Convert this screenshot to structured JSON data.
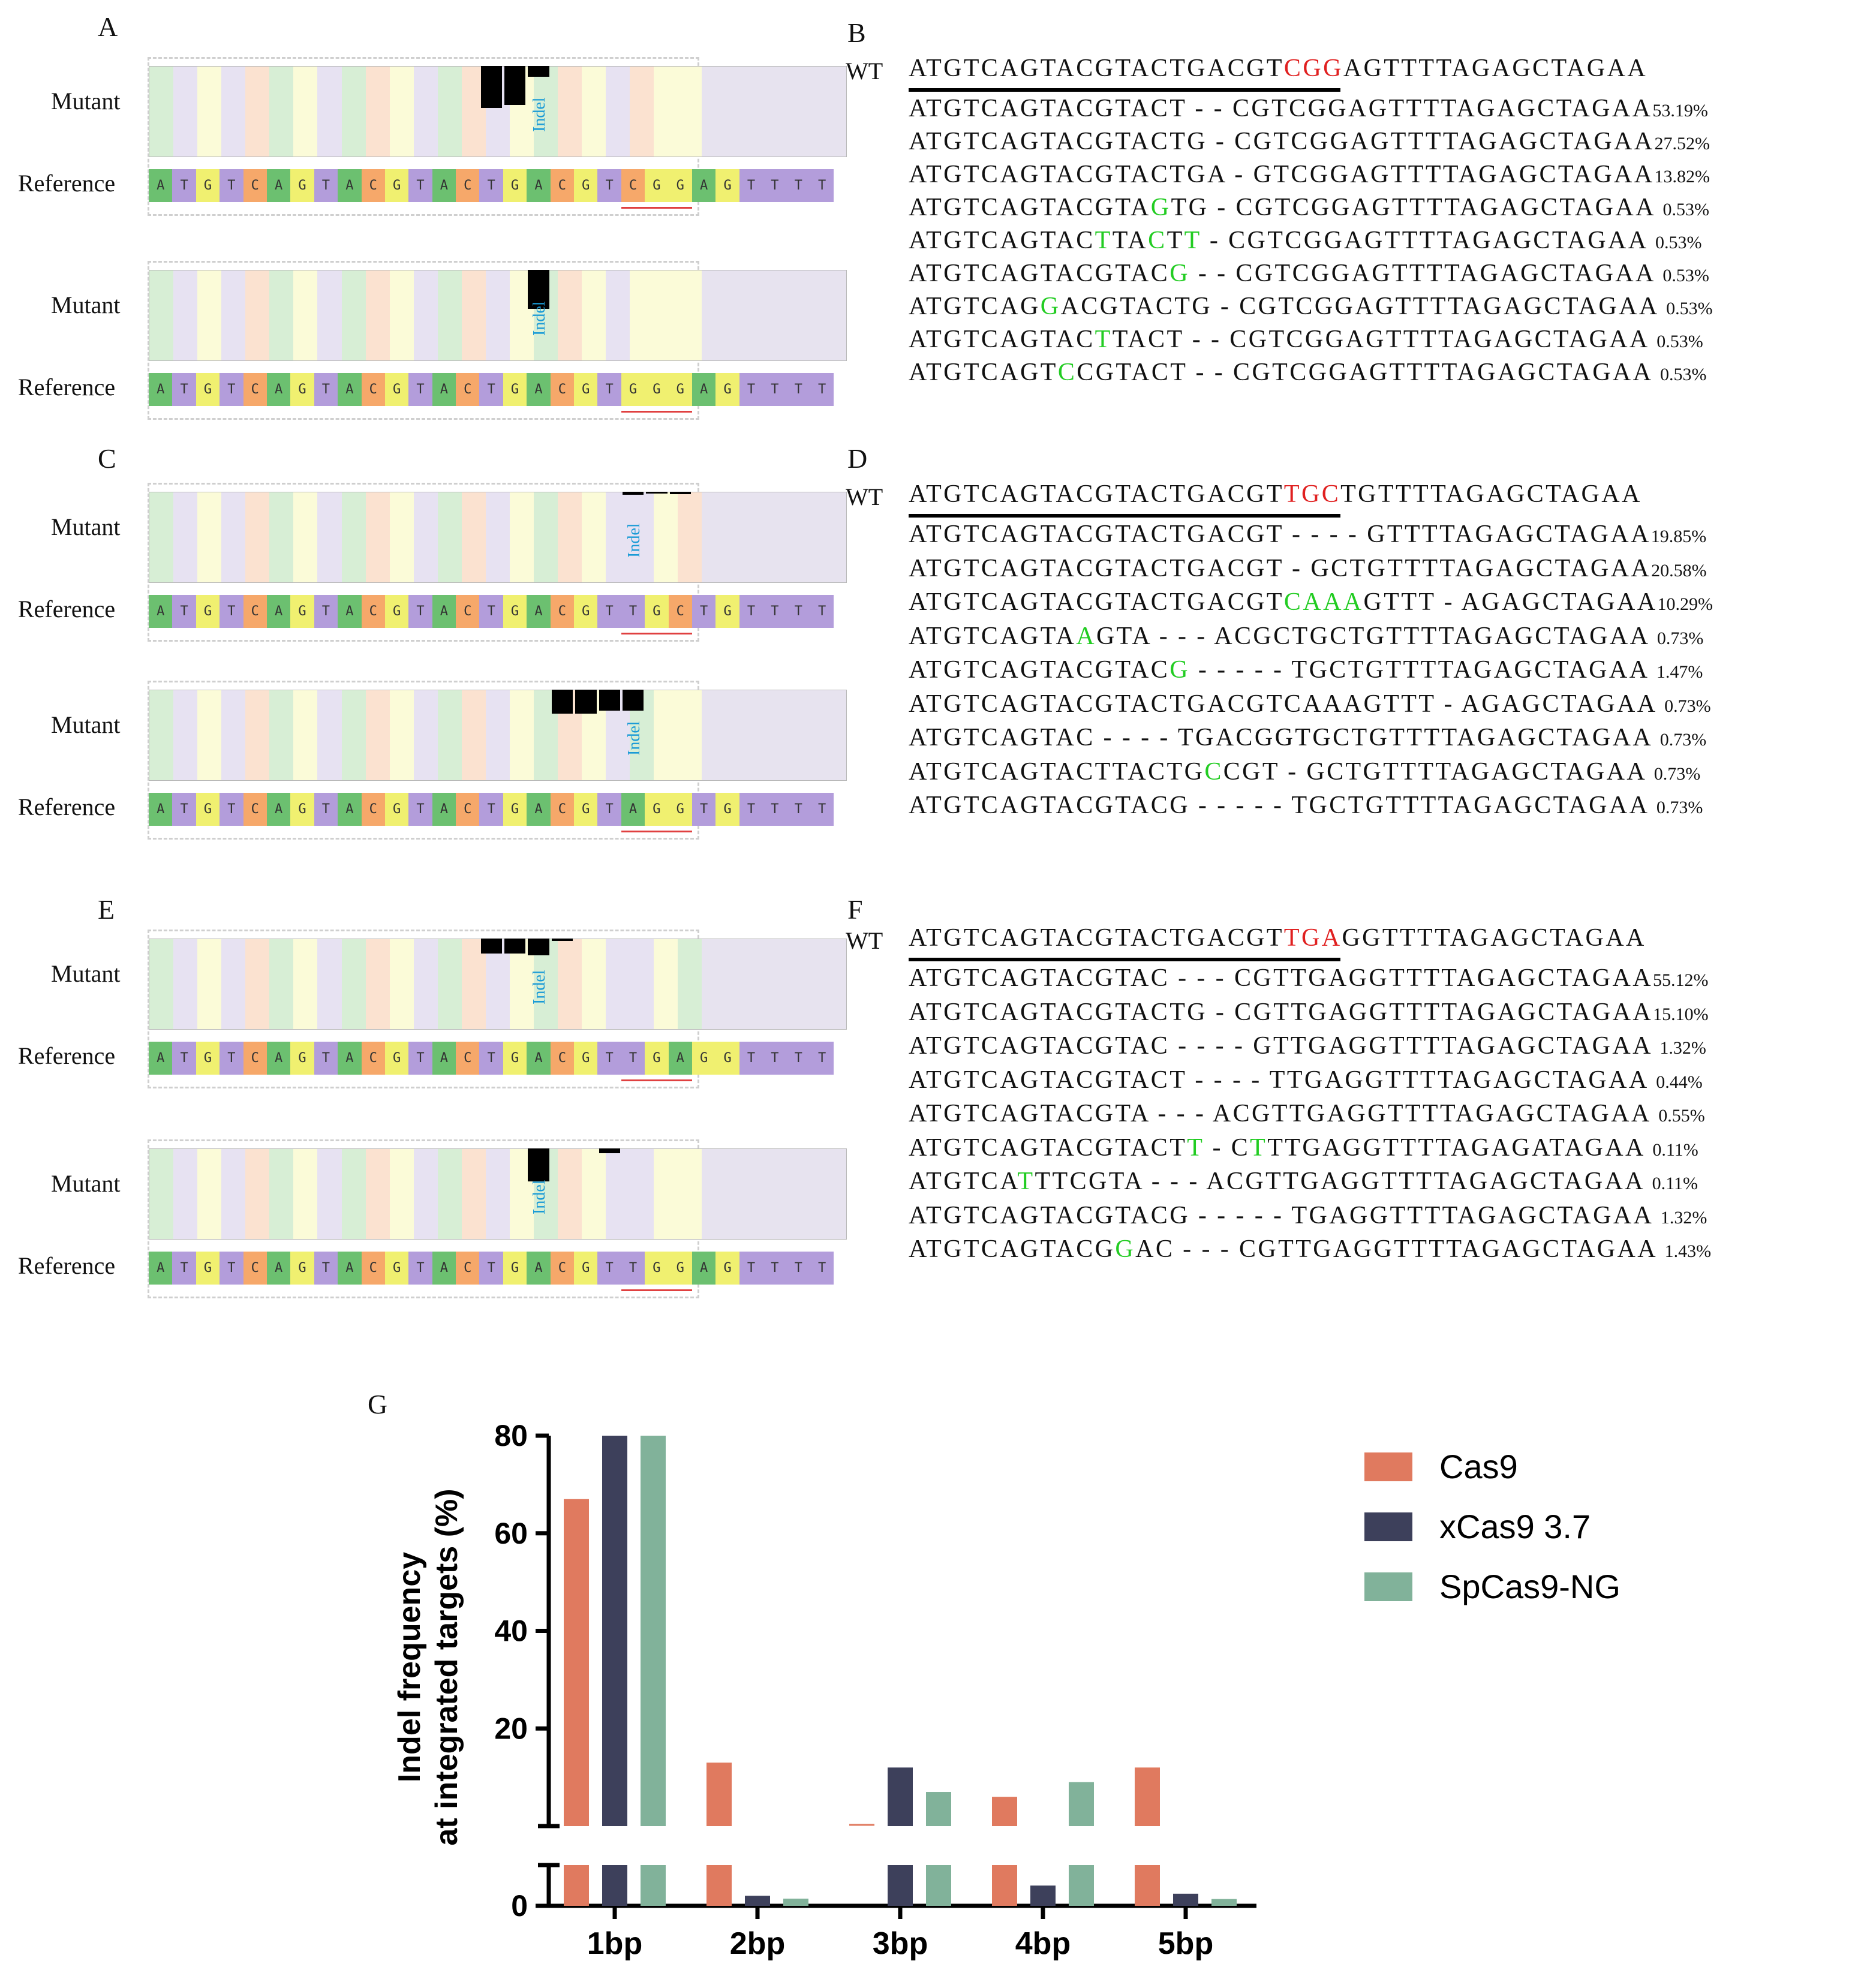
{
  "panels": {
    "A": "A",
    "B": "B",
    "C": "C",
    "D": "D",
    "E": "E",
    "F": "F",
    "G": "G"
  },
  "labels": {
    "mutant": "Mutant",
    "reference": "Reference",
    "indel": "Indel",
    "wt": "WT"
  },
  "refs": [
    "ATGTCAGTACGTACTGACGTCGGAGTTTT",
    "ATGTCAGTACGTACTGACGTGGGAGTTTT",
    "ATGTCAGTACGTACTGACGTTGCTGTTTT",
    "ATGTCAGTACGTACTGACGTAGGTGTTTT",
    "ATGTCAGTACGTACTGACGTTGAGGTTTT",
    "ATGTCAGTACGTACTGACGTTGGAGTTTT"
  ],
  "B": {
    "wt_pre": "ATGTCAGTACGTACTGACGT",
    "wt_pam": "CGG",
    "wt_post": "AGTTTTAGAGCTAGAA",
    "rows": [
      {
        "seq": [
          [
            "ATGTCAGTACGTACT - - CGTCGGAGTTTTAGAGCTAGAA",
            ""
          ]
        ],
        "pct": "53.19%"
      },
      {
        "seq": [
          [
            "ATGTCAGTACGTACTG - CGTCGGAGTTTTAGAGCTAGAA",
            ""
          ]
        ],
        "pct": "27.52%"
      },
      {
        "seq": [
          [
            "ATGTCAGTACGTACTGA - GTCGGAGTTTTAGAGCTAGAA",
            ""
          ]
        ],
        "pct": "13.82%"
      },
      {
        "seq": [
          [
            "ATGTCAGTACGTA",
            ""
          ],
          [
            "G",
            "g"
          ],
          [
            "TG - CGTCGGAGTTTTAGAGCTAGAA ",
            ""
          ]
        ],
        "pct": "0.53%"
      },
      {
        "seq": [
          [
            "ATGTCAGTAC",
            ""
          ],
          [
            "T",
            "g"
          ],
          [
            "TA",
            ""
          ],
          [
            "C",
            "g"
          ],
          [
            "T",
            ""
          ],
          [
            "T",
            "g"
          ],
          [
            " - CGTCGGAGTTTTAGAGCTAGAA ",
            ""
          ]
        ],
        "pct": "0.53%"
      },
      {
        "seq": [
          [
            "ATGTCAGTACGTAC",
            ""
          ],
          [
            "G",
            "g"
          ],
          [
            " - - CGTCGGAGTTTTAGAGCTAGAA ",
            ""
          ]
        ],
        "pct": "0.53%"
      },
      {
        "seq": [
          [
            "ATGTCAG",
            ""
          ],
          [
            "G",
            "g"
          ],
          [
            "ACGTACTG - CGTCGGAGTTTTAGAGCTAGAA ",
            ""
          ]
        ],
        "pct": "0.53%"
      },
      {
        "seq": [
          [
            "ATGTCAGTAC",
            ""
          ],
          [
            "T",
            "g"
          ],
          [
            "TACT - - CGTCGGAGTTTTAGAGCTAGAA ",
            ""
          ]
        ],
        "pct": "0.53%"
      },
      {
        "seq": [
          [
            "ATGTCAGT",
            ""
          ],
          [
            "C",
            "g"
          ],
          [
            "CGTACT - - CGTCGGAGTTTTAGAGCTAGAA ",
            ""
          ]
        ],
        "pct": "0.53%"
      }
    ]
  },
  "D": {
    "wt_pre": "ATGTCAGTACGTACTGACGT",
    "wt_pam": "TGC",
    "wt_post": "TGTTTTAGAGCTAGAA",
    "rows": [
      {
        "seq": [
          [
            "ATGTCAGTACGTACTGACGT - - - - GTTTTAGAGCTAGAA",
            ""
          ]
        ],
        "pct": "19.85%"
      },
      {
        "seq": [
          [
            "ATGTCAGTACGTACTGACGT - GCTGTTTTAGAGCTAGAA",
            ""
          ]
        ],
        "pct": "20.58%"
      },
      {
        "seq": [
          [
            "ATGTCAGTACGTACTGACGT",
            ""
          ],
          [
            "CAAA",
            "g"
          ],
          [
            "GTTT - AGAGCTAGAA",
            ""
          ]
        ],
        "pct": "10.29%"
      },
      {
        "seq": [
          [
            "ATGTCAGTA",
            ""
          ],
          [
            "A",
            "g"
          ],
          [
            "GTA - - - ACGCTGCTGTTTTAGAGCTAGAA ",
            ""
          ]
        ],
        "pct": "0.73%"
      },
      {
        "seq": [
          [
            "ATGTCAGTACGTAC",
            ""
          ],
          [
            "G",
            "g"
          ],
          [
            " - - - - - TGCTGTTTTAGAGCTAGAA ",
            ""
          ]
        ],
        "pct": "1.47%"
      },
      {
        "seq": [
          [
            "ATGTCAGTACGTACTGACGTCAAAGTTT - AGAGCTAGAA ",
            ""
          ]
        ],
        "pct": "0.73%"
      },
      {
        "seq": [
          [
            "ATGTCAGTAC - - - - TGACGGTGCTGTTTTAGAGCTAGAA ",
            ""
          ]
        ],
        "pct": "0.73%"
      },
      {
        "seq": [
          [
            "ATGTCAGTACTTACTG",
            ""
          ],
          [
            "C",
            "g"
          ],
          [
            "CGT - GCTGTTTTAGAGCTAGAA ",
            ""
          ]
        ],
        "pct": "0.73%"
      },
      {
        "seq": [
          [
            "ATGTCAGTACGTACG - - - - - TGCTGTTTTAGAGCTAGAA ",
            ""
          ]
        ],
        "pct": "0.73%"
      }
    ]
  },
  "F": {
    "wt_pre": "ATGTCAGTACGTACTGACGT",
    "wt_pam": "TGA",
    "wt_post": "GGTTTTAGAGCTAGAA",
    "rows": [
      {
        "seq": [
          [
            "ATGTCAGTACGTAC - - - CGTTGAGGTTTTAGAGCTAGAA",
            ""
          ]
        ],
        "pct": "55.12%"
      },
      {
        "seq": [
          [
            "ATGTCAGTACGTACTG - CGTTGAGGTTTTAGAGCTAGAA",
            ""
          ]
        ],
        "pct": "15.10%"
      },
      {
        "seq": [
          [
            "ATGTCAGTACGTAC - - - - GTTGAGGTTTTAGAGCTAGAA ",
            ""
          ]
        ],
        "pct": "1.32%"
      },
      {
        "seq": [
          [
            "ATGTCAGTACGTACT - - - - TTGAGGTTTTAGAGCTAGAA ",
            ""
          ]
        ],
        "pct": "0.44%"
      },
      {
        "seq": [
          [
            "ATGTCAGTACGTA - - - ACGTTGAGGTTTTAGAGCTAGAA ",
            ""
          ]
        ],
        "pct": "0.55%"
      },
      {
        "seq": [
          [
            "ATGTCAGTACGTACT",
            ""
          ],
          [
            "T",
            "g"
          ],
          [
            " - C",
            ""
          ],
          [
            "T",
            "g"
          ],
          [
            "TTGAGGTTTTAGAGATAGAA ",
            ""
          ]
        ],
        "pct": "0.11%"
      },
      {
        "seq": [
          [
            "ATGTCA",
            ""
          ],
          [
            "T",
            "g"
          ],
          [
            "TTCGTA - - - ACGTTGAGGTTTTAGAGCTAGAA ",
            ""
          ]
        ],
        "pct": "0.11%"
      },
      {
        "seq": [
          [
            "ATGTCAGTACGTACG - - - - - TGAGGTTTTAGAGCTAGAA ",
            ""
          ]
        ],
        "pct": "1.32%"
      },
      {
        "seq": [
          [
            "ATGTCAGTACG",
            ""
          ],
          [
            "G",
            "g"
          ],
          [
            "AC - - - CGTTGAGGTTTTAGAGCTAGAA ",
            ""
          ]
        ],
        "pct": "1.43%"
      }
    ]
  },
  "chart_data": {
    "type": "bar",
    "title": "",
    "xlabel": "",
    "ylabel": "Indel frequency at integrated targets (%)",
    "categories": [
      "1bp",
      "2bp",
      "3bp",
      "4bp",
      "5bp"
    ],
    "yticks": [
      "80",
      "60",
      "40",
      "20",
      "0"
    ],
    "axis_break": true,
    "ylim": [
      0,
      80
    ],
    "legend_position": "right",
    "series": [
      {
        "name": "Cas9",
        "color": "#e07a5f",
        "values": [
          67,
          13,
          0,
          6,
          12
        ]
      },
      {
        "name": "xCas9 3.7",
        "color": "#3d405b",
        "values": [
          80,
          1,
          12,
          3.5,
          1.5
        ]
      },
      {
        "name": "SpCas9-NG",
        "color": "#81b29a",
        "values": [
          80,
          0.3,
          7,
          9,
          0.2
        ]
      }
    ]
  }
}
